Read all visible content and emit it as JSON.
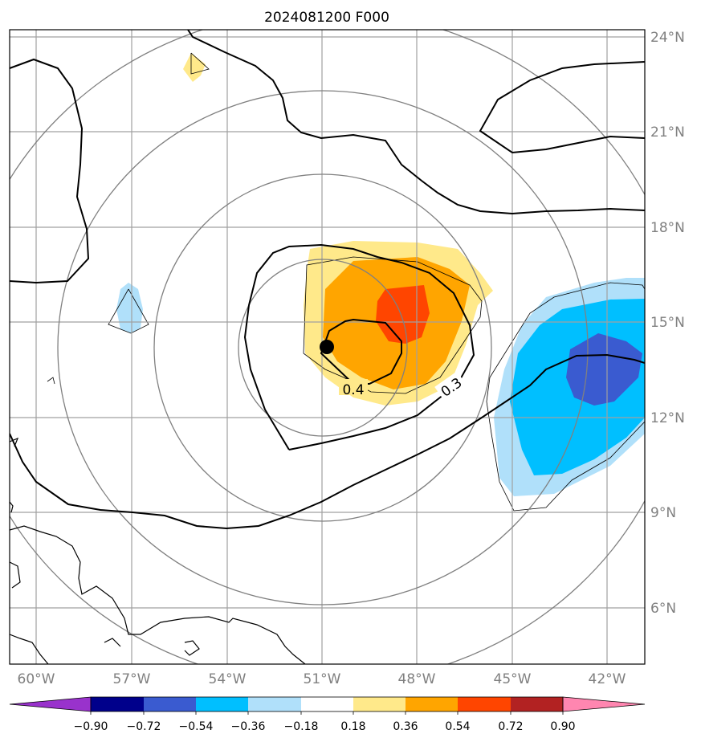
{
  "title": "2024081200 F000",
  "lat_labels": [
    "24°N",
    "21°N",
    "18°N",
    "15°N",
    "12°N",
    "9°N",
    "6°N"
  ],
  "lon_labels": [
    "60°W",
    "57°W",
    "54°W",
    "51°W",
    "48°W",
    "45°W",
    "42°W"
  ],
  "contour_labels": [
    "0.4",
    "0.3"
  ],
  "colorbar": {
    "ticks": [
      "−0.90",
      "−0.72",
      "−0.54",
      "−0.36",
      "−0.18",
      "0.18",
      "0.36",
      "0.54",
      "0.72",
      "0.90"
    ],
    "colors": [
      "#9932cc",
      "#00008b",
      "#3a5bd0",
      "#00bfff",
      "#b0e0fa",
      "#ffffff",
      "#ffe98a",
      "#ffa500",
      "#ff4500",
      "#b22222",
      "#ff86b0"
    ]
  },
  "colors": {
    "frame": "#000000",
    "grid": "#a0a0a0",
    "range_rings": "#808080",
    "storm_center": "#000000"
  }
}
